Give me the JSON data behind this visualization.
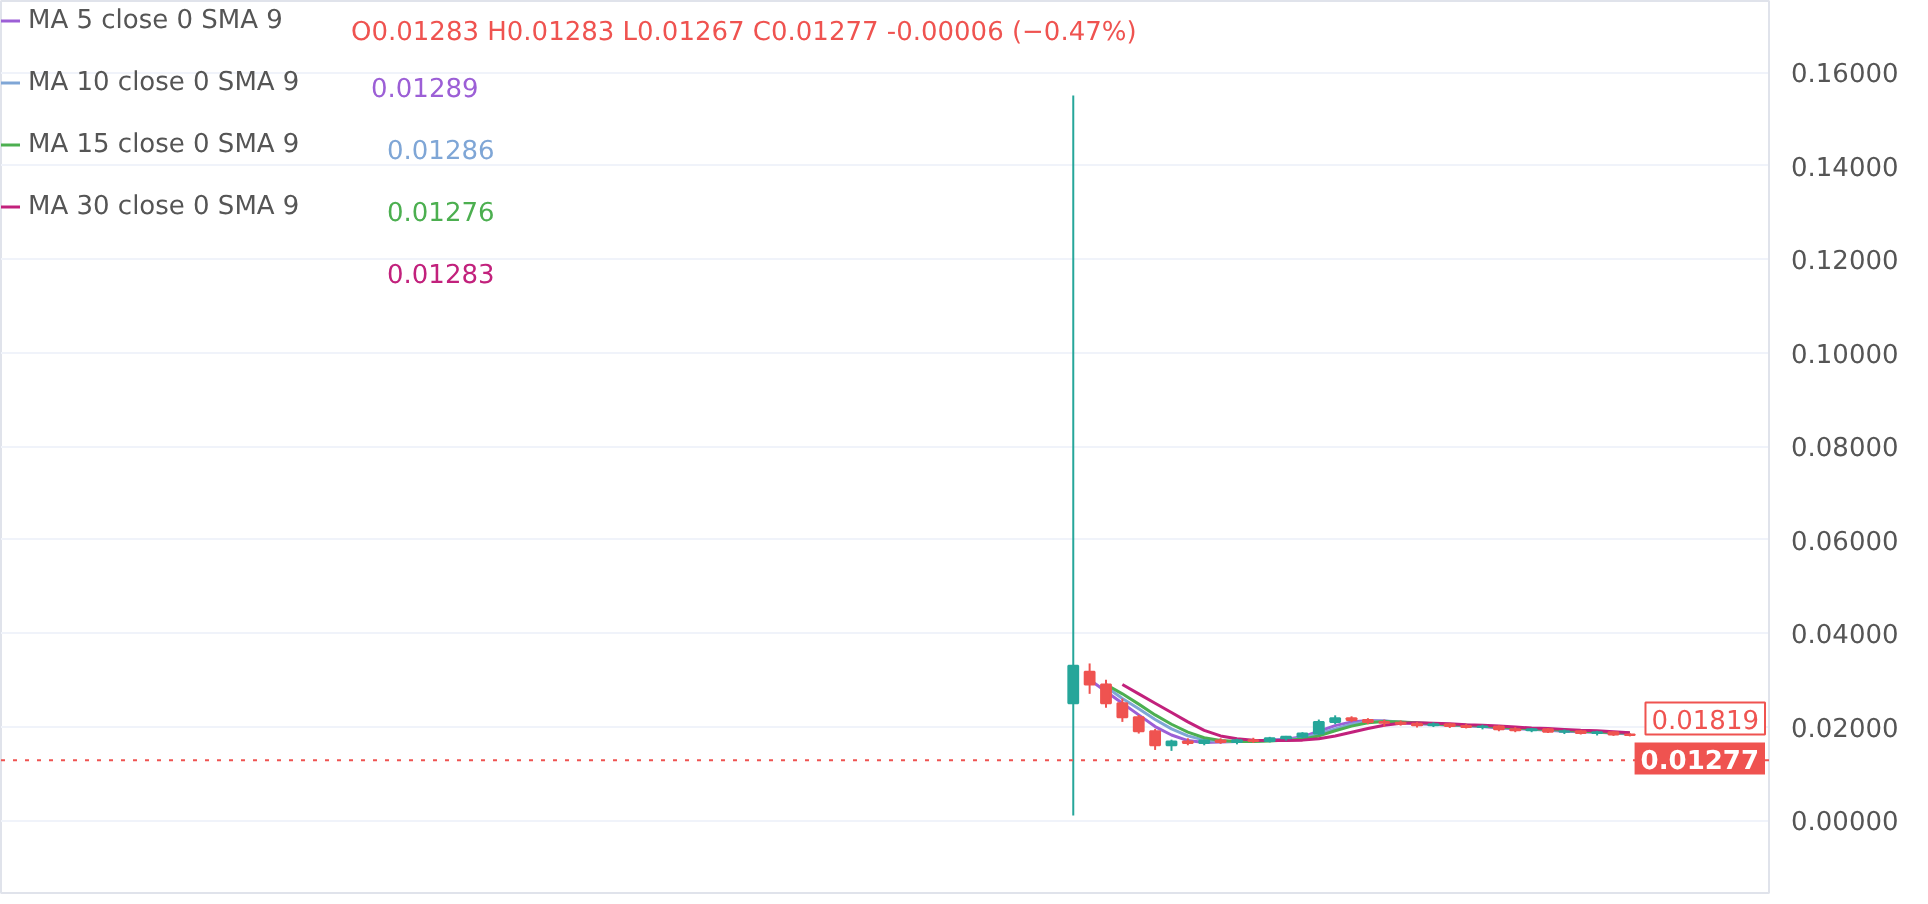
{
  "chart_data": {
    "type": "candlestick",
    "subtitle": "O0.01283 H0.01283 L0.01267 C0.01277 -0.00006 (−0.47%)",
    "categories": [
      null,
      null,
      null,
      null,
      null,
      null,
      null,
      null,
      null,
      null,
      null,
      null,
      null,
      null,
      null,
      null,
      null,
      null,
      null,
      null,
      null,
      null,
      null,
      null,
      null,
      null,
      null,
      null,
      null,
      null,
      null,
      null,
      null,
      null,
      null,
      null,
      null,
      null,
      null,
      null,
      null,
      null,
      null,
      null,
      null,
      null,
      null,
      null,
      null,
      null,
      null,
      null,
      null,
      null,
      null,
      null,
      null,
      null,
      null,
      null,
      null,
      null,
      null,
      null,
      null,
      null,
      null,
      null,
      null,
      null,
      null,
      null,
      null,
      null,
      null,
      null,
      null,
      null,
      null,
      null,
      null,
      null,
      null,
      null,
      null,
      null,
      null,
      null,
      null,
      null,
      null,
      null,
      null,
      null,
      null,
      null,
      null,
      null,
      null,
      null,
      null,
      null,
      null,
      null,
      null,
      null,
      null,
      null
    ],
    "ohlc": [
      null,
      null,
      null,
      null,
      null,
      null,
      null,
      null,
      null,
      null,
      null,
      null,
      null,
      null,
      null,
      null,
      null,
      null,
      null,
      null,
      null,
      null,
      null,
      null,
      null,
      null,
      null,
      null,
      null,
      null,
      null,
      null,
      null,
      null,
      null,
      null,
      null,
      null,
      null,
      null,
      null,
      null,
      null,
      null,
      null,
      null,
      null,
      null,
      null,
      null,
      null,
      null,
      null,
      null,
      null,
      null,
      null,
      null,
      null,
      null,
      null,
      null,
      null,
      null,
      null,
      [
        0.025,
        0.155,
        0.001,
        0.033
      ],
      [
        0.0317,
        0.0335,
        0.027,
        0.029
      ],
      [
        0.029,
        0.03,
        0.024,
        0.025
      ],
      [
        0.025,
        0.026,
        0.021,
        0.022
      ],
      [
        0.022,
        0.0225,
        0.0185,
        0.019
      ],
      [
        0.019,
        0.0195,
        0.015,
        0.016
      ],
      [
        0.016,
        0.0172,
        0.0148,
        0.0168
      ],
      [
        0.0168,
        0.0175,
        0.016,
        0.0165
      ],
      [
        0.0165,
        0.0172,
        0.016,
        0.017
      ],
      [
        0.017,
        0.0175,
        0.0163,
        0.0167
      ],
      [
        0.0167,
        0.0174,
        0.0162,
        0.0171
      ],
      [
        0.0171,
        0.0176,
        0.0165,
        0.0169
      ],
      [
        0.0169,
        0.0178,
        0.0166,
        0.0175
      ],
      [
        0.0175,
        0.018,
        0.017,
        0.0178
      ],
      [
        0.0178,
        0.0188,
        0.0175,
        0.0185
      ],
      [
        0.0185,
        0.0215,
        0.0182,
        0.021
      ],
      [
        0.021,
        0.0224,
        0.0205,
        0.0218
      ],
      [
        0.0218,
        0.0222,
        0.021,
        0.0214
      ],
      [
        0.0214,
        0.0218,
        0.0205,
        0.021
      ],
      [
        0.021,
        0.0215,
        0.02,
        0.0208
      ],
      [
        0.0208,
        0.0213,
        0.0202,
        0.0206
      ],
      [
        0.0206,
        0.021,
        0.0198,
        0.0203
      ],
      [
        0.0203,
        0.0209,
        0.0199,
        0.0205
      ],
      [
        0.0205,
        0.0208,
        0.0197,
        0.0201
      ],
      [
        0.0201,
        0.0206,
        0.0196,
        0.0199
      ],
      [
        0.0199,
        0.0204,
        0.0194,
        0.02
      ],
      [
        0.02,
        0.0203,
        0.019,
        0.0194
      ],
      [
        0.0194,
        0.0199,
        0.0188,
        0.0192
      ],
      [
        0.0192,
        0.0197,
        0.0188,
        0.0194
      ],
      [
        0.0194,
        0.0197,
        0.0186,
        0.0189
      ],
      [
        0.0189,
        0.0194,
        0.0184,
        0.019
      ],
      [
        0.019,
        0.0193,
        0.0183,
        0.0186
      ],
      [
        0.0186,
        0.0191,
        0.0181,
        0.0188
      ],
      [
        0.0188,
        0.019,
        0.018,
        0.0183
      ],
      [
        0.0183,
        0.0186,
        0.0179,
        0.0182
      ],
      null,
      null,
      null,
      null,
      null,
      null,
      null,
      null
    ],
    "series": [
      {
        "type": "line",
        "name": "MA 5 close 0 SMA 9",
        "color": "#9c5fd6",
        "values": [
          null,
          null,
          null,
          null,
          null,
          null,
          null,
          null,
          null,
          null,
          null,
          null,
          null,
          null,
          null,
          null,
          null,
          null,
          null,
          null,
          null,
          null,
          null,
          null,
          null,
          null,
          null,
          null,
          null,
          null,
          null,
          null,
          null,
          null,
          null,
          null,
          null,
          null,
          null,
          null,
          null,
          null,
          null,
          null,
          null,
          null,
          null,
          null,
          null,
          null,
          null,
          null,
          null,
          null,
          null,
          null,
          null,
          null,
          null,
          null,
          null,
          null,
          null,
          null,
          null,
          null,
          0.03,
          0.0275,
          0.025,
          0.0225,
          0.02,
          0.0182,
          0.017,
          0.0166,
          0.0167,
          0.0168,
          0.0169,
          0.0171,
          0.0173,
          0.0178,
          0.019,
          0.0202,
          0.021,
          0.0213,
          0.0212,
          0.0208,
          0.0206,
          0.0205,
          0.0203,
          0.0202,
          0.02,
          0.0197,
          0.0196,
          0.0194,
          0.0192,
          0.019,
          0.0189,
          0.0188,
          0.0186,
          0.0184,
          null,
          null,
          null,
          null,
          null,
          null,
          null,
          null
        ]
      },
      {
        "type": "line",
        "name": "MA 10 close 0 SMA 9",
        "color": "#7fa6d6",
        "values": [
          null,
          null,
          null,
          null,
          null,
          null,
          null,
          null,
          null,
          null,
          null,
          null,
          null,
          null,
          null,
          null,
          null,
          null,
          null,
          null,
          null,
          null,
          null,
          null,
          null,
          null,
          null,
          null,
          null,
          null,
          null,
          null,
          null,
          null,
          null,
          null,
          null,
          null,
          null,
          null,
          null,
          null,
          null,
          null,
          null,
          null,
          null,
          null,
          null,
          null,
          null,
          null,
          null,
          null,
          null,
          null,
          null,
          null,
          null,
          null,
          null,
          null,
          null,
          null,
          null,
          null,
          null,
          0.0285,
          0.026,
          0.0238,
          0.0215,
          0.0195,
          0.018,
          0.0171,
          0.0168,
          0.0168,
          0.0169,
          0.017,
          0.0172,
          0.0175,
          0.0184,
          0.0195,
          0.0205,
          0.0211,
          0.0212,
          0.021,
          0.0207,
          0.0205,
          0.0204,
          0.0202,
          0.0201,
          0.0198,
          0.0196,
          0.0195,
          0.0193,
          0.0191,
          0.019,
          0.0188,
          0.0187,
          0.0185,
          null,
          null,
          null,
          null,
          null,
          null,
          null,
          null
        ]
      },
      {
        "type": "line",
        "name": "MA 15 close 0 SMA 9",
        "color": "#4caf50",
        "values": [
          null,
          null,
          null,
          null,
          null,
          null,
          null,
          null,
          null,
          null,
          null,
          null,
          null,
          null,
          null,
          null,
          null,
          null,
          null,
          null,
          null,
          null,
          null,
          null,
          null,
          null,
          null,
          null,
          null,
          null,
          null,
          null,
          null,
          null,
          null,
          null,
          null,
          null,
          null,
          null,
          null,
          null,
          null,
          null,
          null,
          null,
          null,
          null,
          null,
          null,
          null,
          null,
          null,
          null,
          null,
          null,
          null,
          null,
          null,
          null,
          null,
          null,
          null,
          null,
          null,
          null,
          null,
          0.029,
          0.027,
          0.0248,
          0.0225,
          0.0205,
          0.0188,
          0.0176,
          0.017,
          0.0168,
          0.0168,
          0.0169,
          0.0171,
          0.0173,
          0.018,
          0.0191,
          0.0201,
          0.0208,
          0.0211,
          0.021,
          0.0208,
          0.0206,
          0.0204,
          0.0203,
          0.0201,
          0.0199,
          0.0197,
          0.0195,
          0.0194,
          0.0192,
          0.019,
          0.0189,
          0.0187,
          0.0186,
          null,
          null,
          null,
          null,
          null,
          null,
          null,
          null
        ]
      },
      {
        "type": "line",
        "name": "MA 30 close 0 SMA 9",
        "color": "#c2217c",
        "values": [
          null,
          null,
          null,
          null,
          null,
          null,
          null,
          null,
          null,
          null,
          null,
          null,
          null,
          null,
          null,
          null,
          null,
          null,
          null,
          null,
          null,
          null,
          null,
          null,
          null,
          null,
          null,
          null,
          null,
          null,
          null,
          null,
          null,
          null,
          null,
          null,
          null,
          null,
          null,
          null,
          null,
          null,
          null,
          null,
          null,
          null,
          null,
          null,
          null,
          null,
          null,
          null,
          null,
          null,
          null,
          null,
          null,
          null,
          null,
          null,
          null,
          null,
          null,
          null,
          null,
          null,
          null,
          null,
          0.029,
          0.027,
          0.025,
          0.023,
          0.021,
          0.0192,
          0.018,
          0.0174,
          0.0171,
          0.017,
          0.017,
          0.0171,
          0.0174,
          0.018,
          0.0188,
          0.0196,
          0.0203,
          0.0207,
          0.0208,
          0.0207,
          0.0206,
          0.0204,
          0.0203,
          0.0201,
          0.0199,
          0.0197,
          0.0196,
          0.0194,
          0.0192,
          0.0191,
          0.0189,
          0.0187,
          null,
          null,
          null,
          null,
          null,
          null,
          null,
          null
        ]
      }
    ],
    "annotations": [
      "0.01289",
      "0.01286",
      "0.01276",
      "0.01283",
      "0.01819"
    ],
    "ref_lines": [
      {
        "axis": "y",
        "value": 0.01277,
        "label": "0.01277",
        "color": "#ef5350",
        "line_style": "dotted"
      }
    ],
    "ylim": [
      -0.0156,
      0.1752
    ],
    "yticks": [
      {
        "value": 0,
        "label": "0.00000"
      },
      {
        "value": 0.02,
        "label": "0.02000"
      },
      {
        "value": 0.04,
        "label": "0.04000"
      },
      {
        "value": 0.06,
        "label": "0.06000"
      },
      {
        "value": 0.08,
        "label": "0.08000"
      },
      {
        "value": 0.1,
        "label": "0.10000"
      },
      {
        "value": 0.12,
        "label": "0.12000"
      },
      {
        "value": 0.14,
        "label": "0.14000"
      },
      {
        "value": 0.16,
        "label": "0.16000"
      }
    ],
    "grid": "y",
    "legend": "top left",
    "tick_labels": "y"
  }
}
